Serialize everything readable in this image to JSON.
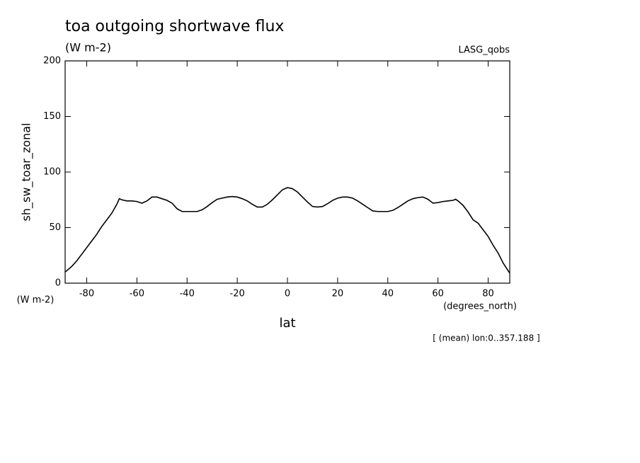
{
  "chart_data": {
    "type": "line",
    "title": "toa outgoing shortwave flux",
    "subtitle": "(W m-2)",
    "dataset": "LASG_qobs",
    "y_label": "sh_sw_toar_zonal",
    "y_units": "(W m-2)",
    "x_label": "lat",
    "x_units": "(degrees_north)",
    "note": "[ (mean) lon:0..357.188 ]",
    "xlim": [
      -88.6,
      88.6
    ],
    "xticks": [
      -80,
      -60,
      -40,
      -20,
      0,
      20,
      40,
      60,
      80
    ],
    "ylim": [
      0,
      200
    ],
    "yticks": [
      0,
      50,
      100,
      150,
      200
    ],
    "x": [
      -88.6,
      -86,
      -84,
      -82,
      -80,
      -78,
      -76,
      -74,
      -72,
      -70,
      -68,
      -67,
      -66,
      -64,
      -62,
      -60,
      -58,
      -56,
      -54,
      -52,
      -50,
      -48,
      -46,
      -44,
      -42,
      -40,
      -38,
      -36,
      -34,
      -32,
      -30,
      -28,
      -26,
      -24,
      -22,
      -20,
      -18,
      -16,
      -14,
      -12,
      -10,
      -8,
      -6,
      -4,
      -2,
      0,
      2,
      4,
      6,
      8,
      10,
      12,
      14,
      16,
      18,
      20,
      22,
      24,
      26,
      28,
      30,
      32,
      34,
      36,
      38,
      40,
      42,
      44,
      46,
      48,
      50,
      52,
      54,
      56,
      58,
      60,
      62,
      64,
      66,
      67,
      68,
      70,
      72,
      74,
      76,
      78,
      80,
      82,
      84,
      86,
      88.6
    ],
    "series": [
      {
        "name": "sh_sw_toar_zonal",
        "color": "#000000",
        "values": [
          10,
          15,
          20,
          26,
          32,
          38,
          44,
          51,
          57,
          63,
          71,
          76,
          75,
          74,
          74,
          73.5,
          72,
          74,
          77.5,
          77.5,
          76,
          74.5,
          72,
          67,
          64.5,
          64.5,
          64.5,
          64.5,
          66,
          69,
          72.5,
          75.5,
          76.5,
          77.5,
          78,
          77.5,
          76,
          74,
          71,
          68.5,
          68.5,
          71,
          75,
          79.5,
          84,
          86,
          85,
          82,
          77.5,
          73,
          69,
          68.5,
          69,
          71.5,
          74.5,
          76.5,
          77.5,
          77.5,
          76.5,
          74,
          71,
          68,
          65,
          64.5,
          64.5,
          64.5,
          65.5,
          68,
          71,
          74,
          76,
          77,
          77.5,
          75.5,
          72,
          72.5,
          73.5,
          74,
          74.5,
          75.5,
          74,
          70,
          64,
          57,
          54,
          48,
          42,
          34,
          27,
          18,
          9
        ]
      }
    ]
  }
}
